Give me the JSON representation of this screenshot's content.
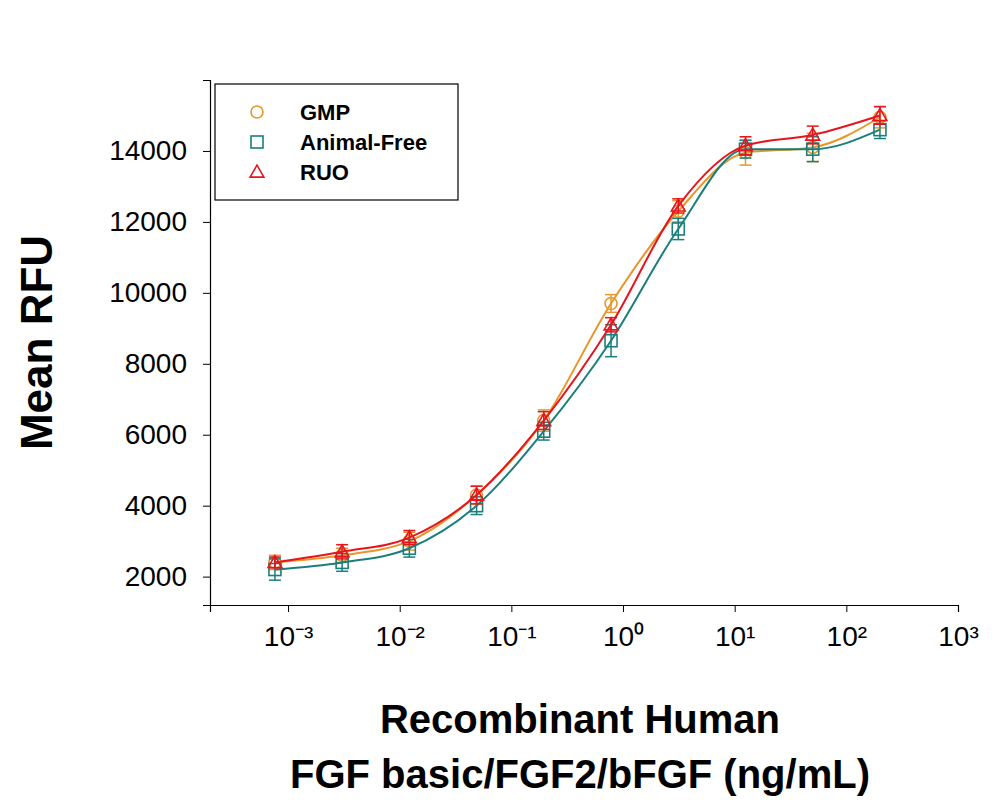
{
  "chart_data": {
    "type": "scatter",
    "x_label": [
      "Recombinant Human",
      "FGF basic/FGF2/bFGF (ng/mL)"
    ],
    "y_label": "Mean RFU",
    "log": "x",
    "legend": "upper left",
    "grid": false,
    "x": [
      0.000763,
      0.00305,
      0.0122,
      0.0488,
      0.195,
      0.781,
      3.125,
      12.5,
      50,
      200
    ],
    "xlim": [
      0.0002,
      1000
    ],
    "xticks": [
      {
        "value": 0.001,
        "label": "10⁻³"
      },
      {
        "value": 0.01,
        "label": "10⁻²"
      },
      {
        "value": 0.1,
        "label": "10⁻¹"
      },
      {
        "value": 1,
        "label": "10⁰"
      },
      {
        "value": 10,
        "label": "10¹"
      },
      {
        "value": 100,
        "label": "10²"
      },
      {
        "value": 1000,
        "label": "10³"
      }
    ],
    "ylim": [
      1200,
      16000
    ],
    "yticks": [
      2000,
      4000,
      6000,
      8000,
      10000,
      12000,
      14000
    ],
    "series": [
      {
        "name": "GMP",
        "color": "#e8962a",
        "marker": "circle",
        "line_style": "solid",
        "values": [
          2400,
          2600,
          3000,
          4300,
          6400,
          9700,
          12300,
          13950,
          14100,
          14950
        ],
        "errors": [
          200,
          200,
          250,
          250,
          300,
          250,
          300,
          350,
          400,
          300
        ]
      },
      {
        "name": "Animal-Free",
        "color": "#1a7f7a",
        "marker": "square",
        "line_style": "solid",
        "values": [
          2200,
          2400,
          2800,
          4000,
          6100,
          8650,
          11800,
          14050,
          14050,
          14600
        ],
        "errors": [
          300,
          250,
          250,
          250,
          250,
          450,
          300,
          250,
          350,
          250
        ]
      },
      {
        "name": "RUO",
        "color": "#e8141c",
        "marker": "triangle",
        "line_style": "solid",
        "values": [
          2400,
          2700,
          3100,
          4300,
          6400,
          9100,
          12450,
          14150,
          14450,
          15000
        ],
        "errors": [
          150,
          200,
          200,
          250,
          250,
          200,
          200,
          250,
          250,
          250
        ]
      }
    ]
  }
}
